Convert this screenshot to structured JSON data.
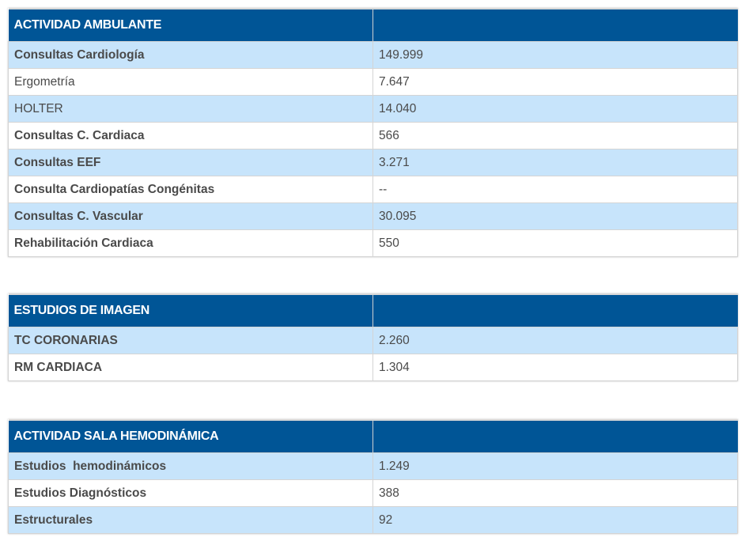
{
  "sections": [
    {
      "header": "ACTIVIDAD AMBULANTE",
      "header_value": "",
      "rows": [
        {
          "label": "Consultas Cardiología",
          "value": "149.999"
        },
        {
          "label": "Ergometría",
          "value": "7.647"
        },
        {
          "label": "HOLTER",
          "value": "14.040"
        },
        {
          "label": "Consultas C. Cardiaca",
          "value": "566"
        },
        {
          "label": "Consultas EEF",
          "value": "3.271"
        },
        {
          "label": "Consulta Cardiopatías Congénitas",
          "value": "--"
        },
        {
          "label": "Consultas C. Vascular",
          "value": "30.095"
        },
        {
          "label": "Rehabilitación Cardiaca",
          "value": "550"
        }
      ]
    },
    {
      "header": "ESTUDIOS DE IMAGEN",
      "header_value": "",
      "rows": [
        {
          "label": "TC CORONARIAS",
          "value": "2.260"
        },
        {
          "label": "RM CARDIACA",
          "value": "1.304"
        }
      ]
    },
    {
      "header": "ACTIVIDAD SALA HEMODINÁMICA",
      "header_value": "",
      "rows": [
        {
          "label": "Estudios  hemodinámicos",
          "value": "1.249"
        },
        {
          "label": "Estudios Diagnósticos",
          "value": "388"
        },
        {
          "label": "Estructurales",
          "value": "92"
        }
      ]
    }
  ],
  "colors": {
    "header_bg": "#005596",
    "header_text": "#ffffff",
    "alt_row_bg": "#c7e4fb",
    "row_bg": "#ffffff",
    "text": "#4a4a4a"
  }
}
